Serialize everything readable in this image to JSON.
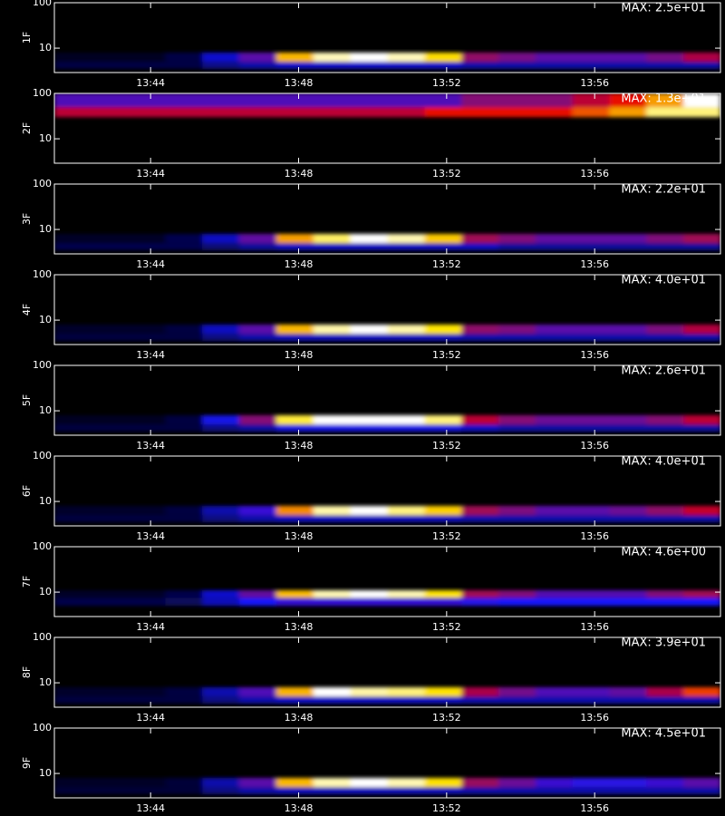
{
  "chart_data": [
    {
      "type": "heatmap",
      "ylabel": "1F",
      "annotation": "MAX: 2.5e+01",
      "log_y": true,
      "xlim": [
        821.4,
        839.4
      ],
      "xticks": [
        {
          "value": 824,
          "label": "13:44"
        },
        {
          "value": 828,
          "label": "13:48"
        },
        {
          "value": 832,
          "label": "13:52"
        },
        {
          "value": 836,
          "label": "13:56"
        }
      ],
      "ylim": [
        2.9,
        100
      ],
      "yticks": [
        10,
        100
      ],
      "xbins": [
        821.4,
        822.4,
        823.4,
        824.4,
        825.4,
        826.4,
        827.4,
        828.4,
        829.4,
        830.4,
        831.4,
        832.4,
        833.4,
        834.4,
        835.4,
        836.4,
        837.4,
        838.4,
        839.4
      ],
      "ybins": [
        3.5,
        5,
        8
      ],
      "z": [
        [
          2,
          2,
          2,
          2,
          4,
          5,
          6,
          6,
          6,
          6,
          6,
          5,
          5,
          5,
          5,
          5,
          5,
          5
        ],
        [
          1,
          1,
          1,
          2,
          6,
          10,
          20,
          24,
          25,
          24,
          21,
          12,
          11,
          10,
          10,
          10,
          11,
          13
        ]
      ]
    },
    {
      "type": "heatmap",
      "ylabel": "2F",
      "annotation": "MAX: 1.3e+01",
      "log_y": true,
      "xlim": [
        821.4,
        839.4
      ],
      "xticks": [
        {
          "value": 824,
          "label": "13:44"
        },
        {
          "value": 828,
          "label": "13:48"
        },
        {
          "value": 832,
          "label": "13:52"
        },
        {
          "value": 836,
          "label": "13:56"
        }
      ],
      "ylim": [
        2.9,
        100
      ],
      "yticks": [
        10,
        100
      ],
      "xbins": [
        821.4,
        822.4,
        823.4,
        824.4,
        825.4,
        826.4,
        827.4,
        828.4,
        829.4,
        830.4,
        831.4,
        832.4,
        833.4,
        834.4,
        835.4,
        836.4,
        837.4,
        838.4,
        839.4
      ],
      "ybins": [
        30,
        50,
        100
      ],
      "z": [
        [
          7,
          7,
          7,
          7,
          7,
          7,
          7,
          7,
          7,
          7,
          8,
          8,
          8,
          8,
          9,
          10,
          12,
          12
        ],
        [
          5,
          5,
          5,
          5,
          5,
          5,
          5,
          5,
          5,
          5,
          5,
          6,
          6,
          6,
          7,
          8,
          10,
          13
        ]
      ]
    },
    {
      "type": "heatmap",
      "ylabel": "3F",
      "annotation": "MAX: 2.2e+01",
      "log_y": true,
      "xlim": [
        821.4,
        839.4
      ],
      "xticks": [
        {
          "value": 824,
          "label": "13:44"
        },
        {
          "value": 828,
          "label": "13:48"
        },
        {
          "value": 832,
          "label": "13:52"
        },
        {
          "value": 836,
          "label": "13:56"
        }
      ],
      "ylim": [
        2.9,
        100
      ],
      "yticks": [
        10,
        100
      ],
      "xbins": [
        821.4,
        822.4,
        823.4,
        824.4,
        825.4,
        826.4,
        827.4,
        828.4,
        829.4,
        830.4,
        831.4,
        832.4,
        833.4,
        834.4,
        835.4,
        836.4,
        837.4,
        838.4,
        839.4
      ],
      "ybins": [
        3.5,
        5,
        8
      ],
      "z": [
        [
          2,
          2,
          2,
          2,
          3,
          4,
          5,
          5,
          5,
          5,
          5,
          5,
          4,
          4,
          4,
          4,
          4,
          4
        ],
        [
          1,
          1,
          1,
          2,
          5,
          9,
          17,
          20,
          22,
          21,
          18,
          11,
          10,
          9,
          9,
          9,
          10,
          11
        ]
      ]
    },
    {
      "type": "heatmap",
      "ylabel": "4F",
      "annotation": "MAX: 4.0e+01",
      "log_y": true,
      "xlim": [
        821.4,
        839.4
      ],
      "xticks": [
        {
          "value": 824,
          "label": "13:44"
        },
        {
          "value": 828,
          "label": "13:48"
        },
        {
          "value": 832,
          "label": "13:52"
        },
        {
          "value": 836,
          "label": "13:56"
        }
      ],
      "ylim": [
        2.9,
        100
      ],
      "yticks": [
        10,
        100
      ],
      "xbins": [
        821.4,
        822.4,
        823.4,
        824.4,
        825.4,
        826.4,
        827.4,
        828.4,
        829.4,
        830.4,
        831.4,
        832.4,
        833.4,
        834.4,
        835.4,
        836.4,
        837.4,
        838.4,
        839.4
      ],
      "ybins": [
        3.5,
        5,
        8
      ],
      "z": [
        [
          3,
          3,
          3,
          3,
          6,
          8,
          9,
          9,
          9,
          9,
          9,
          8,
          8,
          8,
          8,
          8,
          8,
          8
        ],
        [
          2,
          2,
          2,
          3,
          9,
          16,
          32,
          38,
          40,
          38,
          34,
          19,
          18,
          16,
          16,
          16,
          18,
          21
        ]
      ]
    },
    {
      "type": "heatmap",
      "ylabel": "5F",
      "annotation": "MAX: 2.6e+01",
      "log_y": true,
      "xlim": [
        821.4,
        839.4
      ],
      "xticks": [
        {
          "value": 824,
          "label": "13:44"
        },
        {
          "value": 828,
          "label": "13:48"
        },
        {
          "value": 832,
          "label": "13:52"
        },
        {
          "value": 836,
          "label": "13:56"
        }
      ],
      "ylim": [
        2.9,
        100
      ],
      "yticks": [
        10,
        100
      ],
      "xbins": [
        821.4,
        822.4,
        823.4,
        824.4,
        825.4,
        826.4,
        827.4,
        828.4,
        829.4,
        830.4,
        831.4,
        832.4,
        833.4,
        834.4,
        835.4,
        836.4,
        837.4,
        838.4,
        839.4
      ],
      "ybins": [
        3.5,
        5,
        8
      ],
      "z": [
        [
          2,
          2,
          2,
          2,
          4,
          5,
          7,
          7,
          7,
          7,
          7,
          6,
          5,
          5,
          5,
          5,
          5,
          5
        ],
        [
          1,
          1,
          1,
          2,
          7,
          12,
          23,
          26,
          26,
          26,
          24,
          14,
          12,
          11,
          11,
          11,
          12,
          14
        ]
      ]
    },
    {
      "type": "heatmap",
      "ylabel": "6F",
      "annotation": "MAX: 4.0e+01",
      "log_y": true,
      "xlim": [
        821.4,
        839.4
      ],
      "xticks": [
        {
          "value": 824,
          "label": "13:44"
        },
        {
          "value": 828,
          "label": "13:48"
        },
        {
          "value": 832,
          "label": "13:52"
        },
        {
          "value": 836,
          "label": "13:56"
        }
      ],
      "ylim": [
        2.9,
        100
      ],
      "yticks": [
        10,
        100
      ],
      "xbins": [
        821.4,
        822.4,
        823.4,
        824.4,
        825.4,
        826.4,
        827.4,
        828.4,
        829.4,
        830.4,
        831.4,
        832.4,
        833.4,
        834.4,
        835.4,
        836.4,
        837.4,
        838.4,
        839.4
      ],
      "ybins": [
        3.5,
        5,
        8
      ],
      "z": [
        [
          3,
          3,
          3,
          3,
          6,
          8,
          9,
          9,
          9,
          9,
          9,
          8,
          8,
          8,
          8,
          8,
          8,
          8
        ],
        [
          2,
          2,
          2,
          3,
          8,
          14,
          30,
          38,
          40,
          37,
          33,
          20,
          18,
          16,
          16,
          17,
          19,
          22
        ]
      ]
    },
    {
      "type": "heatmap",
      "ylabel": "7F",
      "annotation": "MAX: 4.6e+00",
      "log_y": true,
      "xlim": [
        821.4,
        839.4
      ],
      "xticks": [
        {
          "value": 824,
          "label": "13:44"
        },
        {
          "value": 828,
          "label": "13:48"
        },
        {
          "value": 832,
          "label": "13:52"
        },
        {
          "value": 836,
          "label": "13:56"
        }
      ],
      "ylim": [
        2.9,
        100
      ],
      "yticks": [
        10,
        100
      ],
      "xbins": [
        821.4,
        822.4,
        823.4,
        824.4,
        825.4,
        826.4,
        827.4,
        828.4,
        829.4,
        830.4,
        831.4,
        832.4,
        833.4,
        834.4,
        835.4,
        836.4,
        837.4,
        838.4,
        839.4
      ],
      "ybins": [
        5,
        7.5,
        11
      ],
      "z": [
        [
          0.4,
          0.4,
          0.4,
          0.5,
          1,
          1.4,
          1.6,
          1.6,
          1.6,
          1.6,
          1.6,
          1.5,
          1.4,
          1.4,
          1.4,
          1.4,
          1.4,
          1.4
        ],
        [
          0.2,
          0.2,
          0.2,
          0.4,
          1.1,
          1.9,
          3.7,
          4.4,
          4.6,
          4.4,
          3.9,
          2.3,
          2.1,
          1.8,
          1.8,
          1.8,
          2.1,
          2.3
        ]
      ]
    },
    {
      "type": "heatmap",
      "ylabel": "8F",
      "annotation": "MAX: 3.9e+01",
      "log_y": true,
      "xlim": [
        821.4,
        839.4
      ],
      "xticks": [
        {
          "value": 824,
          "label": "13:44"
        },
        {
          "value": 828,
          "label": "13:48"
        },
        {
          "value": 832,
          "label": "13:52"
        },
        {
          "value": 836,
          "label": "13:56"
        }
      ],
      "ylim": [
        2.9,
        100
      ],
      "yticks": [
        10,
        100
      ],
      "xbins": [
        821.4,
        822.4,
        823.4,
        824.4,
        825.4,
        826.4,
        827.4,
        828.4,
        829.4,
        830.4,
        831.4,
        832.4,
        833.4,
        834.4,
        835.4,
        836.4,
        837.4,
        838.4,
        839.4
      ],
      "ybins": [
        3.5,
        5,
        8
      ],
      "z": [
        [
          3,
          3,
          3,
          3,
          6,
          8,
          9,
          9,
          9,
          9,
          9,
          8,
          8,
          8,
          8,
          8,
          8,
          8
        ],
        [
          2,
          2,
          2,
          3,
          8,
          15,
          31,
          39,
          37,
          36,
          33,
          20,
          17,
          15,
          15,
          16,
          20,
          26
        ]
      ]
    },
    {
      "type": "heatmap",
      "ylabel": "9F",
      "annotation": "MAX: 4.5e+01",
      "log_y": true,
      "xlim": [
        821.4,
        839.4
      ],
      "xticks": [
        {
          "value": 824,
          "label": "13:44"
        },
        {
          "value": 828,
          "label": "13:48"
        },
        {
          "value": 832,
          "label": "13:52"
        },
        {
          "value": 836,
          "label": "13:56"
        }
      ],
      "ylim": [
        2.9,
        100
      ],
      "yticks": [
        10,
        100
      ],
      "xbins": [
        821.4,
        822.4,
        823.4,
        824.4,
        825.4,
        826.4,
        827.4,
        828.4,
        829.4,
        830.4,
        831.4,
        832.4,
        833.4,
        834.4,
        835.4,
        836.4,
        837.4,
        838.4,
        839.4
      ],
      "ybins": [
        3.5,
        5,
        8
      ],
      "z": [
        [
          3,
          3,
          3,
          3,
          7,
          9,
          10,
          10,
          10,
          10,
          10,
          9,
          9,
          9,
          9,
          9,
          9,
          9
        ],
        [
          2,
          2,
          2,
          3,
          9,
          18,
          36,
          43,
          45,
          43,
          38,
          22,
          19,
          16,
          15,
          15,
          16,
          18
        ]
      ]
    }
  ]
}
